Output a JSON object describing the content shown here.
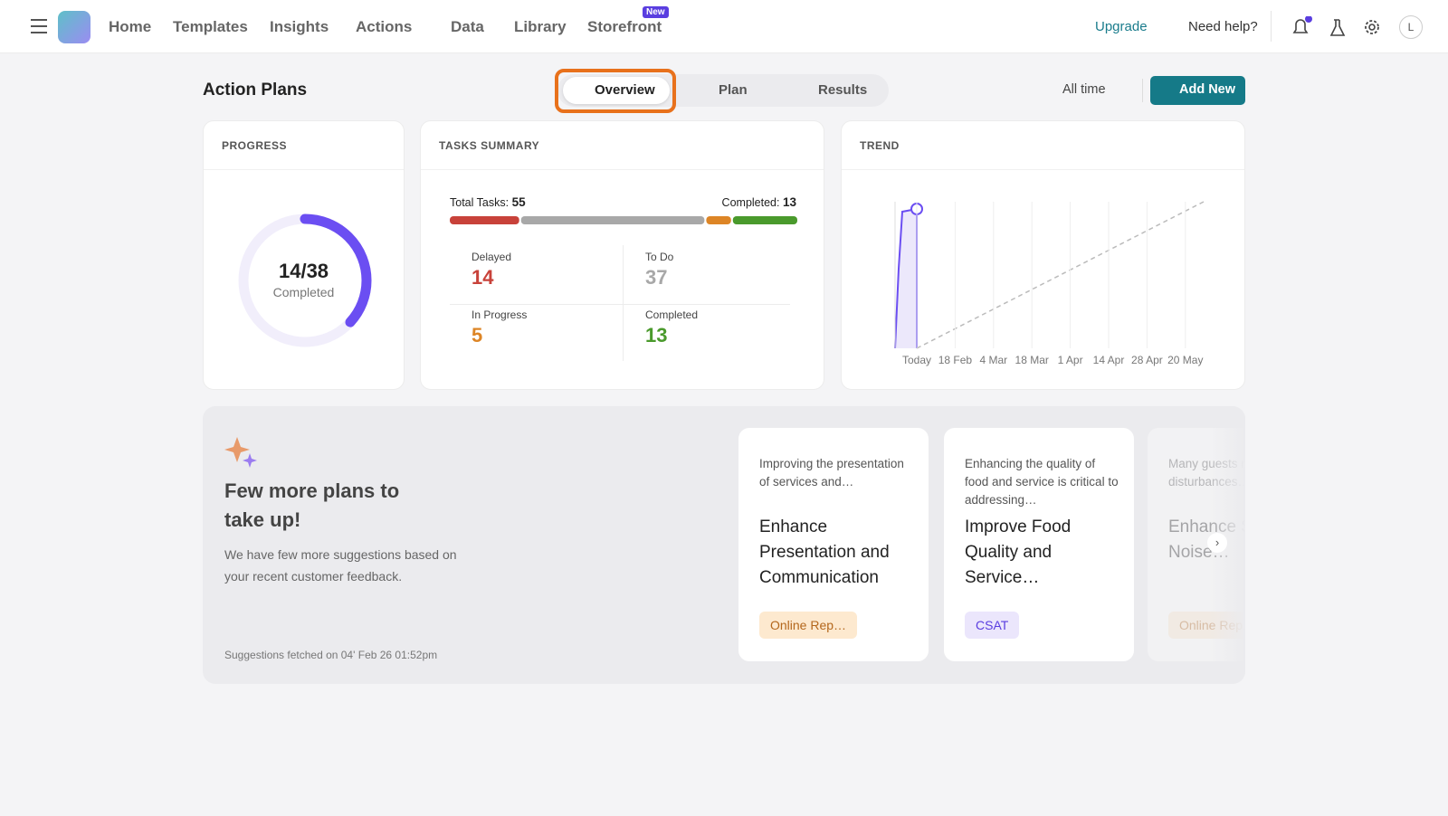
{
  "nav": {
    "items": [
      "Home",
      "Templates",
      "Insights",
      "Actions",
      "Data",
      "Library",
      "Storefront"
    ],
    "badge": "New",
    "upgrade": "Upgrade",
    "help": "Need help?",
    "avatar": "L"
  },
  "header": {
    "title": "Action Plans",
    "tabs": [
      "Overview",
      "Plan",
      "Results"
    ],
    "range": "All time",
    "add": "Add New"
  },
  "progress": {
    "title": "PROGRESS",
    "completed": 14,
    "total": 38,
    "label": "Completed",
    "color": "#6b4ef2"
  },
  "tasks": {
    "title": "TASKS SUMMARY",
    "total_label": "Total Tasks:",
    "total": 55,
    "completed_label": "Completed:",
    "completed": 13,
    "stats": [
      {
        "label": "Delayed",
        "value": 14,
        "color": "#c8423a"
      },
      {
        "label": "To Do",
        "value": 37,
        "color": "#a8a8a8"
      },
      {
        "label": "In Progress",
        "value": 5,
        "color": "#dd8526"
      },
      {
        "label": "Completed",
        "value": 13,
        "color": "#4a9a2c"
      }
    ]
  },
  "trend": {
    "title": "TREND",
    "x": [
      "Today",
      "18 Feb",
      "4 Mar",
      "18 Mar",
      "1 Apr",
      "14 Apr",
      "28 Apr",
      "20 May"
    ]
  },
  "suggestions": {
    "title": "Few more plans to take up!",
    "description": "We have few more suggestions based on your recent customer feedback.",
    "footer": "Suggestions fetched on 04' Feb 26 01:52pm",
    "cards": [
      {
        "intro": "Improving the presentation of services and…",
        "name": "Enhance Presentation and Communication",
        "tag": "Online Rep…"
      },
      {
        "intro": "Enhancing the quality of food and service is critical to addressing…",
        "name": "Improve Food Quality and Service…",
        "tag": "CSAT"
      },
      {
        "intro": "Many guests reported disturbances…",
        "name": "Enhance Sound and Noise…",
        "tag": "Online Rep…"
      }
    ]
  }
}
